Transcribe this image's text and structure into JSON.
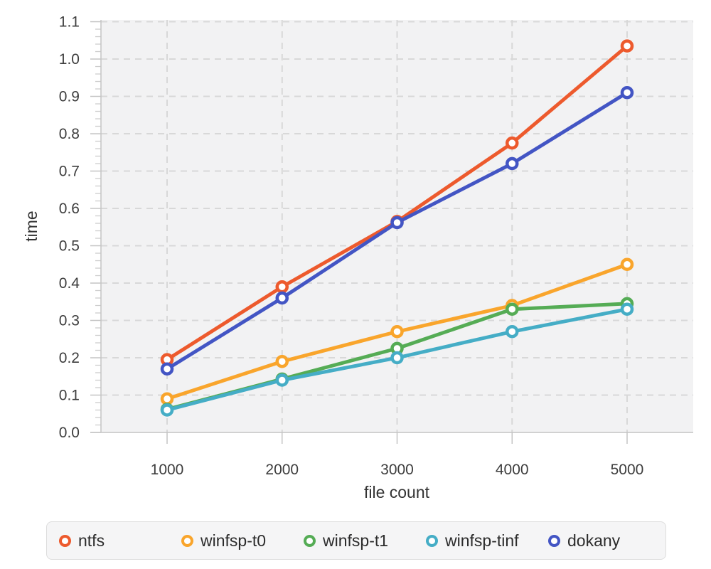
{
  "chart_data": {
    "type": "line",
    "title": "",
    "xlabel": "file count",
    "ylabel": "time",
    "x": [
      1000,
      2000,
      3000,
      4000,
      5000
    ],
    "series": [
      {
        "name": "ntfs",
        "color": "#ed5a2d",
        "values": [
          0.195,
          0.39,
          0.565,
          0.775,
          1.035
        ]
      },
      {
        "name": "winfsp-t0",
        "color": "#f9a52c",
        "values": [
          0.09,
          0.19,
          0.27,
          0.34,
          0.45
        ]
      },
      {
        "name": "winfsp-t1",
        "color": "#55ac55",
        "values": [
          0.062,
          0.143,
          0.225,
          0.33,
          0.345
        ]
      },
      {
        "name": "winfsp-tinf",
        "color": "#45adc6",
        "values": [
          0.06,
          0.14,
          0.2,
          0.27,
          0.33
        ]
      },
      {
        "name": "dokany",
        "color": "#4355c4",
        "values": [
          0.17,
          0.36,
          0.562,
          0.72,
          0.91
        ]
      }
    ],
    "x_ticks": {
      "values": [
        1000,
        2000,
        3000,
        4000,
        5000
      ],
      "labels": [
        "1000",
        "2000",
        "3000",
        "4000",
        "5000"
      ]
    },
    "y_ticks": {
      "values": [
        0,
        0.1,
        0.2,
        0.3,
        0.4,
        0.5,
        0.6,
        0.7,
        0.8,
        0.9,
        1.0,
        1.1
      ],
      "labels": [
        "0.0",
        "0.1",
        "0.2",
        "0.3",
        "0.4",
        "0.5",
        "0.6",
        "0.7",
        "0.8",
        "0.9",
        "1.0",
        "1.1"
      ],
      "minor_step": 0.02
    },
    "x_range": [
      425,
      5575
    ],
    "y_range": [
      0,
      1.1048
    ],
    "grid": true,
    "marker_style": "open-circle",
    "legend_position": "bottom"
  },
  "styles": {
    "plot_bg": "#f2f2f3",
    "grid_color": "#d8d8d8",
    "axis_color": "#c4c4c4",
    "minor_tick_color": "#cdcdcd",
    "tick_label_color": "#3d3d3d",
    "axis_title_color": "#333333",
    "legend_bg": "#f5f5f6",
    "legend_border": "#dddddd",
    "legend_text_color": "#2c2c2c"
  }
}
